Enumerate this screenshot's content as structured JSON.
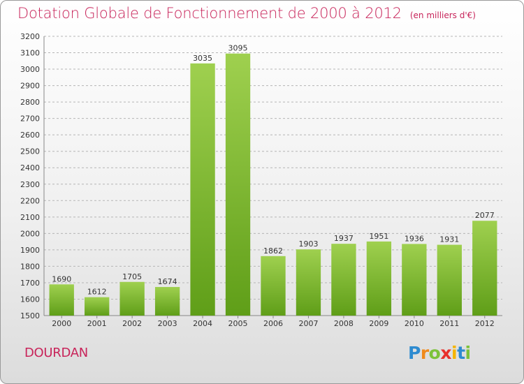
{
  "header": {
    "title": "Dotation Globale de Fonctionnement de 2000 à 2012",
    "unit": "(en milliers d'€)"
  },
  "footer": {
    "town": "DOURDAN",
    "logo_letters": [
      "P",
      "r",
      "o",
      "x",
      "i",
      "t",
      "i"
    ],
    "logo_colors": [
      "#2e8bd0",
      "#f08a1c",
      "#7cc23a",
      "#e8302b",
      "#f5b400",
      "#2e8bd0",
      "#7cc23a"
    ]
  },
  "chart_data": {
    "type": "bar",
    "categories": [
      "2000",
      "2001",
      "2002",
      "2003",
      "2004",
      "2005",
      "2006",
      "2007",
      "2008",
      "2009",
      "2010",
      "2011",
      "2012"
    ],
    "values": [
      1690,
      1612,
      1705,
      1674,
      3035,
      3095,
      1862,
      1903,
      1937,
      1951,
      1936,
      1931,
      2077
    ],
    "ylim": [
      1500,
      3200
    ],
    "yticks": [
      1500,
      1600,
      1700,
      1800,
      1900,
      2000,
      2100,
      2200,
      2300,
      2400,
      2500,
      2600,
      2700,
      2800,
      2900,
      3000,
      3100,
      3200
    ],
    "grid": true,
    "bar_color": "#8cc63f"
  }
}
